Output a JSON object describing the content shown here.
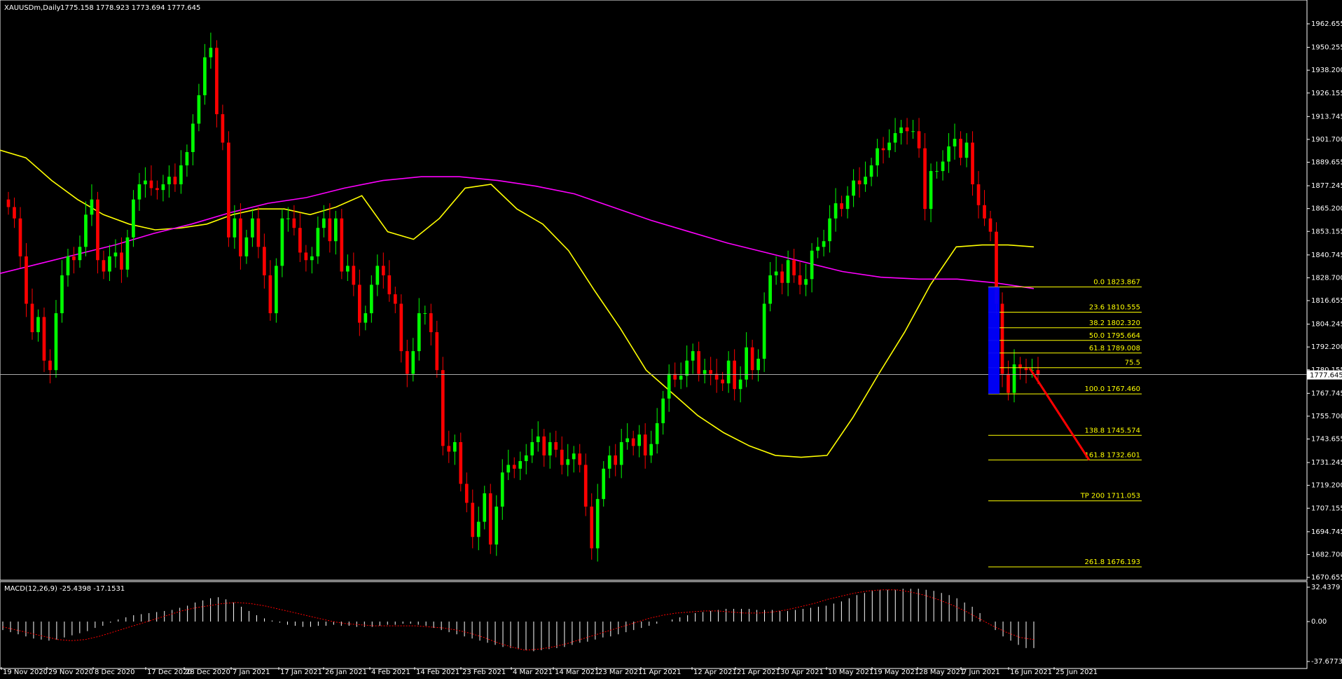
{
  "header": {
    "symbol": "XAUUSDm,Daily",
    "ohlc": "1775.158 1778.923 1773.694 1777.645"
  },
  "current_price_label": "1777.645",
  "macd_header": "MACD(12,26,9) -25.4398 -17.1531",
  "colors": {
    "background": "#000000",
    "bull": "#00ff00",
    "bear": "#ff0000",
    "ma_fast": "#ffff00",
    "ma_slow": "#ff00ff",
    "fib": "#ffff00",
    "rect": "#0000ff",
    "arrow": "#ff0000",
    "axis_text": "#ffffff"
  },
  "chart_data": [
    {
      "type": "candlestick",
      "title": "XAUUSDm,Daily",
      "y_ticks": [
        "1962.655",
        "1950.255",
        "1938.200",
        "1926.155",
        "1913.745",
        "1901.700",
        "1889.655",
        "1877.245",
        "1865.200",
        "1853.155",
        "1840.745",
        "1828.700",
        "1816.655",
        "1804.245",
        "1792.200",
        "1780.155",
        "1767.745",
        "1755.700",
        "1743.655",
        "1731.245",
        "1719.200",
        "1707.155",
        "1694.745",
        "1682.700",
        "1670.655"
      ],
      "x_ticks": [
        "19 Nov 2020",
        "29 Nov 2020",
        "8 Dec 2020",
        "17 Dec 2020",
        "28 Dec 2020",
        "7 Jan 2021",
        "17 Jan 2021",
        "26 Jan 2021",
        "4 Feb 2021",
        "14 Feb 2021",
        "23 Feb 2021",
        "4 Mar 2021",
        "14 Mar 2021",
        "23 Mar 2021",
        "1 Apr 2021",
        "12 Apr 2021",
        "21 Apr 2021",
        "30 Apr 2021",
        "10 May 2021",
        "19 May 2021",
        "28 May 2021",
        "7 Jun 2021",
        "16 Jun 2021",
        "25 Jun 2021"
      ],
      "ylim": [
        1670.655,
        1968
      ],
      "close_points": [
        [
          0,
          1866
        ],
        [
          1,
          1860
        ],
        [
          2,
          1840
        ],
        [
          3,
          1815
        ],
        [
          4,
          1800
        ],
        [
          5,
          1808
        ],
        [
          6,
          1785
        ],
        [
          7,
          1780
        ],
        [
          8,
          1810
        ],
        [
          9,
          1830
        ],
        [
          10,
          1840
        ],
        [
          11,
          1838
        ],
        [
          12,
          1845
        ],
        [
          13,
          1862
        ],
        [
          14,
          1870
        ],
        [
          15,
          1838
        ],
        [
          16,
          1832
        ],
        [
          17,
          1840
        ],
        [
          18,
          1842
        ],
        [
          19,
          1833
        ],
        [
          20,
          1850
        ],
        [
          21,
          1870
        ],
        [
          22,
          1878
        ],
        [
          23,
          1880
        ],
        [
          24,
          1876
        ],
        [
          25,
          1875
        ],
        [
          26,
          1878
        ],
        [
          27,
          1882
        ],
        [
          28,
          1878
        ],
        [
          29,
          1888
        ],
        [
          30,
          1895
        ],
        [
          31,
          1910
        ],
        [
          32,
          1925
        ],
        [
          33,
          1945
        ],
        [
          34,
          1950
        ],
        [
          35,
          1915
        ],
        [
          36,
          1900
        ],
        [
          37,
          1850
        ],
        [
          38,
          1860
        ],
        [
          39,
          1840
        ],
        [
          40,
          1850
        ],
        [
          41,
          1860
        ],
        [
          42,
          1845
        ],
        [
          43,
          1830
        ],
        [
          44,
          1810
        ],
        [
          45,
          1835
        ],
        [
          46,
          1860
        ],
        [
          47,
          1860
        ],
        [
          48,
          1855
        ],
        [
          49,
          1842
        ],
        [
          50,
          1838
        ],
        [
          51,
          1840
        ],
        [
          52,
          1855
        ],
        [
          53,
          1860
        ],
        [
          54,
          1848
        ],
        [
          55,
          1860
        ],
        [
          56,
          1832
        ],
        [
          57,
          1835
        ],
        [
          58,
          1825
        ],
        [
          59,
          1805
        ],
        [
          60,
          1810
        ],
        [
          61,
          1825
        ],
        [
          62,
          1835
        ],
        [
          63,
          1830
        ],
        [
          64,
          1820
        ],
        [
          65,
          1815
        ],
        [
          66,
          1790
        ],
        [
          67,
          1778
        ],
        [
          68,
          1790
        ],
        [
          69,
          1810
        ],
        [
          70,
          1810
        ],
        [
          71,
          1800
        ],
        [
          72,
          1780
        ],
        [
          73,
          1740
        ],
        [
          74,
          1737
        ],
        [
          75,
          1742
        ],
        [
          76,
          1720
        ],
        [
          77,
          1710
        ],
        [
          78,
          1692
        ],
        [
          79,
          1700
        ],
        [
          80,
          1715
        ],
        [
          81,
          1688
        ],
        [
          82,
          1708
        ],
        [
          83,
          1726
        ],
        [
          84,
          1730
        ],
        [
          85,
          1728
        ],
        [
          86,
          1732
        ],
        [
          87,
          1735
        ],
        [
          88,
          1742
        ],
        [
          89,
          1745
        ],
        [
          90,
          1735
        ],
        [
          91,
          1742
        ],
        [
          92,
          1738
        ],
        [
          93,
          1730
        ],
        [
          94,
          1733
        ],
        [
          95,
          1736
        ],
        [
          96,
          1730
        ],
        [
          97,
          1708
        ],
        [
          98,
          1686
        ],
        [
          99,
          1712
        ],
        [
          100,
          1728
        ],
        [
          101,
          1735
        ],
        [
          102,
          1730
        ],
        [
          103,
          1742
        ],
        [
          104,
          1744
        ],
        [
          105,
          1740
        ],
        [
          106,
          1746
        ],
        [
          107,
          1735
        ],
        [
          108,
          1741
        ],
        [
          109,
          1752
        ],
        [
          110,
          1765
        ],
        [
          111,
          1778
        ],
        [
          112,
          1775
        ],
        [
          113,
          1777
        ],
        [
          114,
          1785
        ],
        [
          115,
          1790
        ],
        [
          116,
          1778
        ],
        [
          117,
          1780
        ],
        [
          118,
          1778
        ],
        [
          119,
          1775
        ],
        [
          120,
          1773
        ],
        [
          121,
          1785
        ],
        [
          122,
          1770
        ],
        [
          123,
          1775
        ],
        [
          124,
          1792
        ],
        [
          125,
          1780
        ],
        [
          126,
          1786
        ],
        [
          127,
          1815
        ],
        [
          128,
          1830
        ],
        [
          129,
          1832
        ],
        [
          130,
          1826
        ],
        [
          131,
          1838
        ],
        [
          132,
          1830
        ],
        [
          133,
          1825
        ],
        [
          134,
          1828
        ],
        [
          135,
          1843
        ],
        [
          136,
          1845
        ],
        [
          137,
          1848
        ],
        [
          138,
          1860
        ],
        [
          139,
          1868
        ],
        [
          140,
          1865
        ],
        [
          141,
          1872
        ],
        [
          142,
          1880
        ],
        [
          143,
          1878
        ],
        [
          144,
          1882
        ],
        [
          145,
          1888
        ],
        [
          146,
          1897
        ],
        [
          147,
          1896
        ],
        [
          148,
          1900
        ],
        [
          149,
          1905
        ],
        [
          150,
          1908
        ],
        [
          151,
          1906
        ],
        [
          152,
          1906
        ],
        [
          153,
          1897
        ],
        [
          154,
          1865
        ],
        [
          155,
          1885
        ],
        [
          156,
          1885
        ],
        [
          157,
          1890
        ],
        [
          158,
          1898
        ],
        [
          159,
          1902
        ],
        [
          160,
          1892
        ],
        [
          161,
          1900
        ],
        [
          162,
          1878
        ],
        [
          163,
          1867
        ],
        [
          164,
          1860
        ],
        [
          165,
          1853
        ],
        [
          166,
          1815
        ],
        [
          167,
          1778
        ],
        [
          168,
          1768
        ],
        [
          169,
          1783
        ],
        [
          170,
          1781
        ],
        [
          171,
          1780
        ],
        [
          172,
          1780
        ],
        [
          173,
          1777.645
        ]
      ],
      "series": [
        {
          "name": "MA fast",
          "values_note": "",
          "values": [
            1896,
            1892,
            1880,
            1870,
            1862,
            1857,
            1854,
            1855,
            1857,
            1862,
            1865,
            1865,
            1862,
            1866,
            1872,
            1853,
            1849,
            1860,
            1876,
            1878,
            1865,
            1857,
            1843,
            1822,
            1802,
            1780,
            1768,
            1756,
            1747,
            1740,
            1735,
            1734,
            1735,
            1755,
            1778,
            1800,
            1825,
            1845,
            1846,
            1846,
            1845
          ]
        },
        {
          "name": "MA slow",
          "values": [
            1831,
            1836,
            1841,
            1846,
            1852,
            1857,
            1863,
            1868,
            1871,
            1876,
            1880,
            1882,
            1882,
            1880,
            1877,
            1873,
            1866,
            1859,
            1853,
            1847,
            1842,
            1837,
            1832,
            1829,
            1828,
            1828,
            1826,
            1823
          ]
        }
      ],
      "fibonacci": [
        {
          "label": "0.0 1823.867",
          "price": 1823.867
        },
        {
          "label": "23.6 1810.555",
          "price": 1810.555
        },
        {
          "label": "38.2 1802.320",
          "price": 1802.32
        },
        {
          "label": "50.0 1795.664",
          "price": 1795.664
        },
        {
          "label": "61.8 1789.008",
          "price": 1789.008
        },
        {
          "label": "75.5",
          "price": 1781.283
        },
        {
          "label": "100.0 1767.460",
          "price": 1767.46
        },
        {
          "label": "138.8 1745.574",
          "price": 1745.574
        },
        {
          "label": "161.8 1732.601",
          "price": 1732.601
        },
        {
          "label": "TP 200 1711.053",
          "price": 1711.053
        },
        {
          "label": "261.8 1676.193",
          "price": 1676.193
        }
      ],
      "current_price": 1777.645
    },
    {
      "type": "bar",
      "title": "MACD(12,26,9) -25.4398 -17.1531",
      "y_ticks": [
        "32.4379",
        "0.00",
        "-37.6773"
      ],
      "ylim": [
        -37.6773,
        32.4379
      ],
      "values": [
        -8,
        -10,
        -12,
        -14,
        -16,
        -17,
        -18,
        -17,
        -15,
        -13,
        -11,
        -9,
        -6,
        -4,
        -1,
        2,
        4,
        6,
        7,
        8,
        9,
        10,
        11,
        13,
        15,
        18,
        20,
        22,
        23,
        21,
        18,
        14,
        10,
        6,
        3,
        1,
        -1,
        -3,
        -4,
        -5,
        -5,
        -4,
        -4,
        -3,
        -4,
        -4,
        -5,
        -5,
        -5,
        -4,
        -3,
        -3,
        -2,
        -2,
        -3,
        -4,
        -6,
        -8,
        -10,
        -12,
        -14,
        -16,
        -18,
        -20,
        -22,
        -24,
        -25,
        -26,
        -27,
        -28,
        -27,
        -26,
        -25,
        -24,
        -22,
        -20,
        -19,
        -17,
        -15,
        -14,
        -12,
        -10,
        -8,
        -6,
        -4,
        -2,
        0,
        2,
        4,
        6,
        8,
        9,
        10,
        11,
        12,
        12,
        12,
        12,
        11,
        11,
        11,
        10,
        10,
        11,
        12,
        13,
        14,
        15,
        17,
        19,
        22,
        25,
        27,
        29,
        30,
        30,
        30,
        31,
        31,
        31,
        30,
        29,
        27,
        25,
        22,
        18,
        14,
        8,
        0,
        -8,
        -14,
        -18,
        -22,
        -25,
        -25
      ],
      "signal": [
        -5,
        -8,
        -11,
        -14,
        -17,
        -18,
        -17,
        -14,
        -10,
        -6,
        -2,
        2,
        6,
        10,
        13,
        15,
        17,
        18,
        17,
        15,
        12,
        9,
        6,
        3,
        0,
        -2,
        -3,
        -4,
        -4,
        -4,
        -4,
        -5,
        -6,
        -8,
        -11,
        -15,
        -20,
        -24,
        -27,
        -26,
        -24,
        -21,
        -17,
        -13,
        -9,
        -5,
        -1,
        3,
        6,
        8,
        9,
        10,
        10,
        9,
        8,
        8,
        9,
        11,
        14,
        17,
        21,
        24,
        27,
        29,
        30,
        30,
        28,
        25,
        21,
        16,
        10,
        3,
        -4,
        -10,
        -15,
        -17
      ]
    }
  ]
}
